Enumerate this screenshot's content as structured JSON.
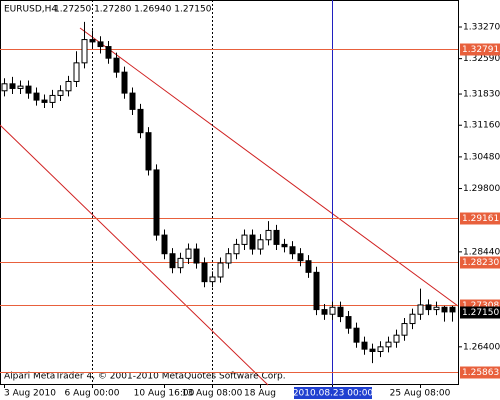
{
  "chart_data": {
    "type": "candlestick",
    "title": "EURUSD,H4",
    "ohlc_label": "1.27250 1.27280 1.26940 1.27150",
    "footer": "Alpari MetaTrader 4, © 2001-2010 MetaQuotes Software Corp.",
    "ylim": [
      1.2558,
      1.3385
    ],
    "yticks": [
      {
        "value": 1.3327,
        "label": "1.33270"
      },
      {
        "value": 1.3259,
        "label": "1.32590"
      },
      {
        "value": 1.3183,
        "label": "1.31830"
      },
      {
        "value": 1.3116,
        "label": "1.31160"
      },
      {
        "value": 1.3048,
        "label": "1.30480"
      },
      {
        "value": 1.298,
        "label": "1.29800"
      },
      {
        "value": 1.2844,
        "label": "1.28440"
      },
      {
        "value": 1.264,
        "label": "1.26400"
      }
    ],
    "categories": [
      "3 Aug 2010",
      null,
      null,
      null,
      null,
      null,
      null,
      null,
      null,
      null,
      null,
      "6 Aug 00:00",
      null,
      null,
      null,
      null,
      null,
      null,
      null,
      null,
      "10 Aug 16:00",
      null,
      null,
      null,
      null,
      null,
      "13 Aug 08:00",
      null,
      null,
      null,
      null,
      null,
      "18 Aug",
      null,
      null,
      null,
      null,
      null,
      null,
      null,
      null,
      "2010.08.23 00:00",
      null,
      null,
      null,
      null,
      null,
      null,
      null,
      null,
      null,
      null,
      "25 Aug 08:00",
      null,
      null,
      null,
      null
    ],
    "highlight_category": 41,
    "vlines": [
      11,
      26
    ],
    "open": [
      1.319,
      1.3205,
      1.3195,
      1.32,
      1.3185,
      1.317,
      1.3165,
      1.318,
      1.319,
      1.321,
      1.325,
      1.33,
      1.3295,
      1.3285,
      1.326,
      1.323,
      1.3185,
      1.315,
      1.31,
      1.302,
      1.288,
      1.284,
      1.281,
      1.283,
      1.285,
      1.282,
      1.278,
      1.279,
      1.282,
      1.284,
      1.286,
      1.288,
      1.285,
      1.287,
      1.289,
      1.286,
      1.2855,
      1.284,
      1.2825,
      1.28,
      1.272,
      1.271,
      1.2725,
      1.2705,
      1.268,
      1.265,
      1.2635,
      1.263,
      1.264,
      1.265,
      1.2665,
      1.269,
      1.271,
      1.273,
      1.272,
      1.2725,
      1.2725
    ],
    "high": [
      1.3217,
      1.322,
      1.3212,
      1.3212,
      1.3197,
      1.3182,
      1.3192,
      1.3202,
      1.3222,
      1.3275,
      1.3338,
      1.332,
      1.3307,
      1.3297,
      1.3272,
      1.3242,
      1.3197,
      1.3162,
      1.3112,
      1.3032,
      1.2892,
      1.2852,
      1.2842,
      1.2862,
      1.2862,
      1.2832,
      1.2802,
      1.2832,
      1.2852,
      1.2872,
      1.2892,
      1.2892,
      1.2882,
      1.291,
      1.2902,
      1.2872,
      1.2867,
      1.2852,
      1.2837,
      1.2812,
      1.2732,
      1.2737,
      1.2737,
      1.2717,
      1.2692,
      1.2662,
      1.2647,
      1.2652,
      1.2662,
      1.2677,
      1.2702,
      1.2722,
      1.2765,
      1.2742,
      1.2737,
      1.2728,
      1.2728
    ],
    "low": [
      1.3178,
      1.3183,
      1.3183,
      1.3173,
      1.3158,
      1.3153,
      1.3153,
      1.3168,
      1.3178,
      1.3198,
      1.3238,
      1.328,
      1.327,
      1.3248,
      1.3218,
      1.3173,
      1.3138,
      1.3088,
      1.3008,
      1.2868,
      1.2828,
      1.2798,
      1.2798,
      1.2818,
      1.2808,
      1.2768,
      1.2768,
      1.2778,
      1.2808,
      1.2828,
      1.2848,
      1.2838,
      1.2838,
      1.2858,
      1.2848,
      1.2843,
      1.2828,
      1.2813,
      1.2788,
      1.2708,
      1.2698,
      1.2698,
      1.2693,
      1.2668,
      1.2638,
      1.2623,
      1.2605,
      1.2618,
      1.2628,
      1.2638,
      1.2653,
      1.2678,
      1.2698,
      1.2708,
      1.2708,
      1.2694,
      1.2694
    ],
    "close": [
      1.3205,
      1.3195,
      1.32,
      1.3185,
      1.317,
      1.3165,
      1.318,
      1.319,
      1.321,
      1.325,
      1.33,
      1.3295,
      1.3285,
      1.326,
      1.323,
      1.3185,
      1.315,
      1.31,
      1.302,
      1.288,
      1.284,
      1.281,
      1.283,
      1.285,
      1.282,
      1.278,
      1.279,
      1.282,
      1.284,
      1.286,
      1.288,
      1.285,
      1.287,
      1.289,
      1.286,
      1.2855,
      1.284,
      1.2825,
      1.28,
      1.272,
      1.271,
      1.2725,
      1.2705,
      1.268,
      1.265,
      1.2635,
      1.263,
      1.264,
      1.265,
      1.2665,
      1.269,
      1.271,
      1.273,
      1.272,
      1.2725,
      1.2715,
      1.2715
    ],
    "levels": [
      1.32791,
      1.29161,
      {
        "value": 1.2823,
        "label": "1.28230"
      },
      1.27308,
      1.25863
    ],
    "level_color": "#e8603c",
    "current_price": {
      "value": 1.2715,
      "label": "1.27150"
    }
  }
}
